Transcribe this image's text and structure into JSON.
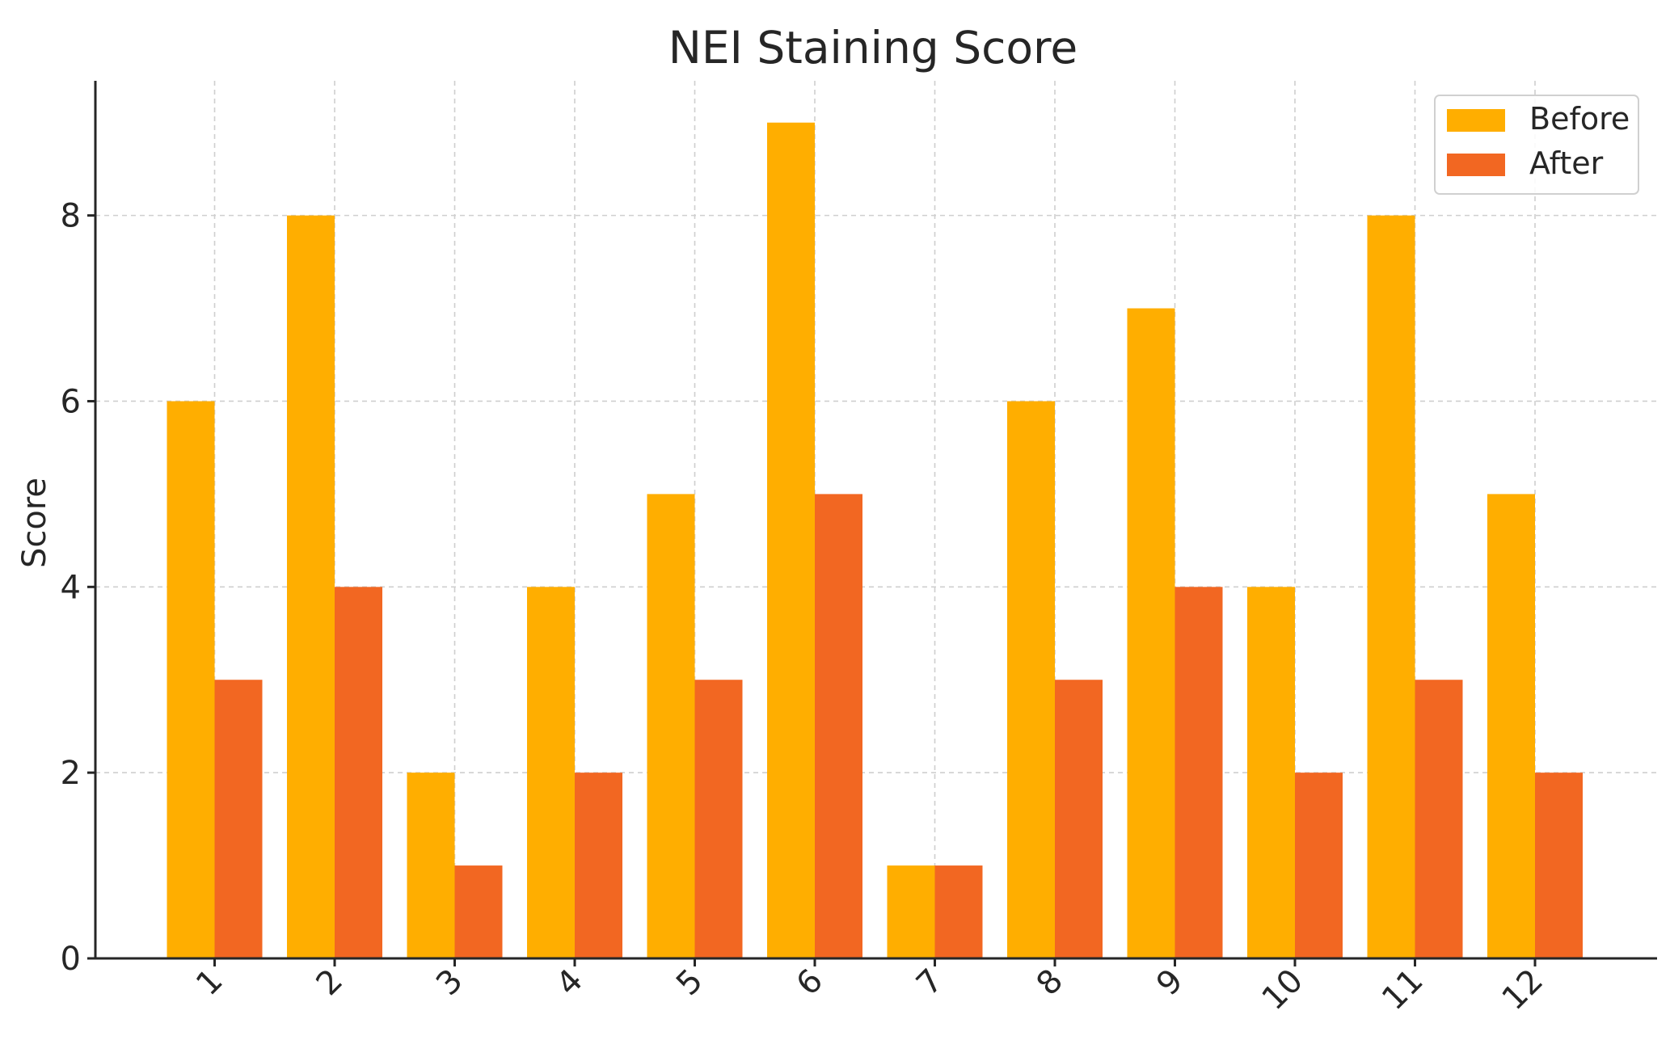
{
  "chart_data": {
    "type": "bar",
    "title": "NEI Staining Score",
    "xlabel": "",
    "ylabel": "Score",
    "categories": [
      "1",
      "2",
      "3",
      "4",
      "5",
      "6",
      "7",
      "8",
      "9",
      "10",
      "11",
      "12"
    ],
    "series": [
      {
        "name": "Before",
        "color": "#FFAE00",
        "values": [
          6,
          8,
          2,
          4,
          5,
          9,
          1,
          6,
          7,
          4,
          8,
          5
        ]
      },
      {
        "name": "After",
        "color": "#F26722",
        "values": [
          3,
          4,
          1,
          2,
          3,
          5,
          1,
          3,
          4,
          2,
          3,
          2
        ]
      }
    ],
    "ylim": [
      0,
      9.45
    ],
    "yticks": [
      0,
      2,
      4,
      6,
      8
    ],
    "grid": true,
    "legend": "top-right"
  }
}
